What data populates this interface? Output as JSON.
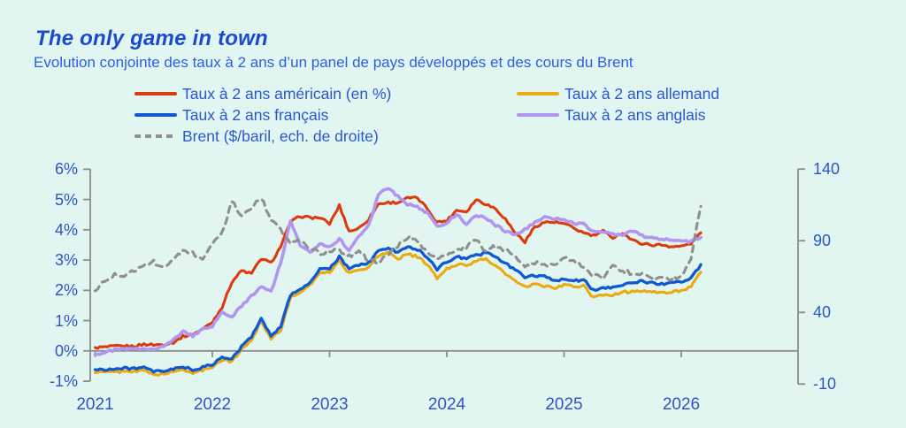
{
  "page": {
    "background": "#e2f6f1"
  },
  "header": {
    "title": "The only game in town",
    "subtitle": "Evolution conjointe des taux à 2 ans d’un panel de pays développés et des cours du Brent"
  },
  "legend": {
    "items": [
      {
        "label": "Taux à 2 ans américain (en %)",
        "series": 0
      },
      {
        "label": "Taux à 2 ans français",
        "series": 2
      },
      {
        "label": "Brent ($/baril, ech. de droite)",
        "series": 4
      },
      {
        "label": "Taux à 2 ans allemand",
        "series": 1
      },
      {
        "label": "Taux à 2 ans anglais",
        "series": 3
      }
    ]
  },
  "chart_data": {
    "type": "line",
    "title": "The only game in town",
    "subtitle": "Evolution conjointe des taux à 2 ans d’un panel de pays développés et des cours du Brent",
    "x_start": "2021-01",
    "x_end": "2026-03",
    "frequency": "monthly",
    "x_labels": [
      "2021",
      "2022",
      "2023",
      "2024",
      "2025",
      "2026"
    ],
    "left_axis": {
      "unit": "%",
      "range": [
        -1,
        6
      ],
      "tick_labels": [
        "6%",
        "5%",
        "4%",
        "3%",
        "2%",
        "1%",
        "0%",
        "-1%"
      ],
      "tick_values": [
        6,
        5,
        4,
        3,
        2,
        1,
        0,
        -1
      ]
    },
    "right_axis": {
      "unit": "$/baril",
      "range": [
        -10,
        140
      ],
      "tick_labels": [
        "140",
        "90",
        "40",
        "-10"
      ],
      "tick_values": [
        140,
        90,
        40,
        -10
      ]
    },
    "grid": false,
    "legend_position": "top",
    "axis_color": "#8c8c8c",
    "series": [
      {
        "name": "Taux à 2 ans américain (en %)",
        "axis": "left",
        "color": "#dc3a0f",
        "dashed": false,
        "width": 3.1,
        "values": [
          0.11,
          0.12,
          0.15,
          0.16,
          0.15,
          0.22,
          0.2,
          0.21,
          0.28,
          0.48,
          0.55,
          0.72,
          0.95,
          1.45,
          2.28,
          2.65,
          2.55,
          3.05,
          2.9,
          3.45,
          4.25,
          4.45,
          4.4,
          4.4,
          4.2,
          4.8,
          3.95,
          4.05,
          4.35,
          4.85,
          4.9,
          4.9,
          5.05,
          5.05,
          4.7,
          4.25,
          4.3,
          4.65,
          4.6,
          5.0,
          4.85,
          4.7,
          4.35,
          3.9,
          3.6,
          4.1,
          4.25,
          4.25,
          4.2,
          4.05,
          3.9,
          3.8,
          3.95,
          3.75,
          3.9,
          3.65,
          3.55,
          3.5,
          3.5,
          3.45,
          3.45,
          3.55,
          3.9
        ]
      },
      {
        "name": "Taux à 2 ans allemand",
        "axis": "left",
        "color": "#e9ab10",
        "dashed": false,
        "width": 3.1,
        "values": [
          -0.72,
          -0.7,
          -0.7,
          -0.68,
          -0.66,
          -0.65,
          -0.78,
          -0.76,
          -0.7,
          -0.6,
          -0.74,
          -0.63,
          -0.52,
          -0.3,
          -0.35,
          0.05,
          0.35,
          1.0,
          0.4,
          0.7,
          1.75,
          1.95,
          2.15,
          2.6,
          2.6,
          3.0,
          2.55,
          2.7,
          2.75,
          3.15,
          3.25,
          3.05,
          3.2,
          3.1,
          2.85,
          2.4,
          2.7,
          2.85,
          2.85,
          2.95,
          3.05,
          2.8,
          2.55,
          2.3,
          2.1,
          2.2,
          2.15,
          2.05,
          2.2,
          2.1,
          2.15,
          1.75,
          1.85,
          1.85,
          1.95,
          1.95,
          2.0,
          1.95,
          1.9,
          1.95,
          2.0,
          2.1,
          2.6
        ]
      },
      {
        "name": "Taux à 2 ans français",
        "axis": "left",
        "color": "#1057d2",
        "dashed": false,
        "width": 3.3,
        "values": [
          -0.62,
          -0.61,
          -0.6,
          -0.58,
          -0.57,
          -0.56,
          -0.69,
          -0.67,
          -0.61,
          -0.51,
          -0.64,
          -0.55,
          -0.45,
          -0.22,
          -0.28,
          0.15,
          0.45,
          1.1,
          0.5,
          0.8,
          1.85,
          2.05,
          2.25,
          2.7,
          2.7,
          3.1,
          2.7,
          2.85,
          2.9,
          3.3,
          3.4,
          3.25,
          3.45,
          3.35,
          3.1,
          2.7,
          2.95,
          3.1,
          3.05,
          3.15,
          3.25,
          3.1,
          2.9,
          2.65,
          2.45,
          2.5,
          2.45,
          2.3,
          2.4,
          2.3,
          2.35,
          2.0,
          2.1,
          2.1,
          2.2,
          2.25,
          2.3,
          2.25,
          2.2,
          2.25,
          2.3,
          2.4,
          2.85
        ]
      },
      {
        "name": "Taux à 2 ans anglais",
        "axis": "left",
        "color": "#b295ee",
        "dashed": false,
        "width": 3.6,
        "values": [
          -0.12,
          -0.05,
          0.04,
          0.06,
          0.05,
          0.07,
          0.08,
          0.15,
          0.35,
          0.65,
          0.5,
          0.7,
          0.8,
          1.3,
          1.1,
          1.5,
          1.8,
          2.15,
          1.95,
          2.9,
          4.3,
          3.45,
          3.25,
          3.55,
          3.45,
          3.7,
          3.3,
          3.8,
          4.15,
          5.15,
          5.4,
          5.1,
          4.85,
          4.75,
          4.55,
          4.1,
          4.25,
          4.5,
          4.2,
          4.45,
          4.4,
          4.15,
          3.95,
          3.85,
          4.0,
          4.25,
          4.4,
          4.35,
          4.35,
          4.2,
          4.2,
          3.95,
          3.95,
          3.85,
          3.85,
          3.95,
          3.8,
          3.75,
          3.7,
          3.65,
          3.6,
          3.62,
          3.75
        ]
      },
      {
        "name": "Brent ($/baril, ech. de droite)",
        "axis": "right",
        "color": "#8f8f8f",
        "dashed": true,
        "width": 3.1,
        "values": [
          55,
          63,
          66,
          66,
          69,
          74,
          75,
          71,
          76,
          84,
          81,
          76,
          87,
          95,
          118,
          106,
          113,
          120,
          105,
          97,
          88,
          90,
          85,
          81,
          83,
          83,
          79,
          84,
          76,
          75,
          80,
          87,
          93,
          89,
          81,
          77,
          79,
          83,
          86,
          90,
          83,
          86,
          84,
          78,
          71,
          75,
          73,
          73,
          78,
          75,
          72,
          66,
          64,
          72,
          69,
          67,
          67,
          64,
          63,
          64,
          65,
          78,
          114
        ]
      }
    ]
  }
}
